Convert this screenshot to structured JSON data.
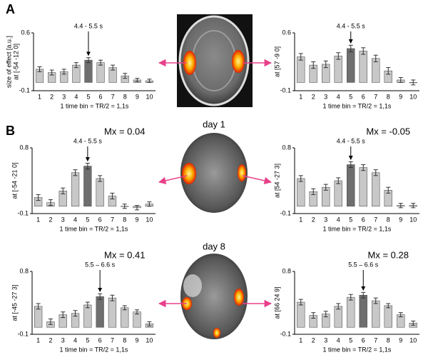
{
  "labels": {
    "panel_a": "A",
    "panel_b": "B",
    "day1": "day 1",
    "day8": "day 8"
  },
  "chart_data": [
    {
      "type": "bar",
      "ylabel": [
        "size of effect [a.u.]",
        "at [-54 -12 0]"
      ],
      "xlabel": "1 time bin = TR/2 = 1,1s",
      "annotation": "4.4 - 5.5 s",
      "categories": [
        1,
        2,
        3,
        4,
        5,
        6,
        7,
        8,
        9,
        10
      ],
      "values": [
        0.16,
        0.12,
        0.13,
        0.21,
        0.27,
        0.24,
        0.18,
        0.08,
        0.03,
        0.02
      ],
      "errors": [
        0.03,
        0.03,
        0.03,
        0.03,
        0.03,
        0.03,
        0.03,
        0.03,
        0.02,
        0.02
      ],
      "colors": [
        "#c8c8c8",
        "#c8c8c8",
        "#c8c8c8",
        "#c8c8c8",
        "#6e6e6e",
        "#c8c8c8",
        "#c8c8c8",
        "#c8c8c8",
        "#c8c8c8",
        "#c8c8c8"
      ],
      "ylim": [
        -0.1,
        0.6
      ],
      "yticks": [
        -0.1,
        0.6
      ]
    },
    {
      "type": "bar",
      "ylabel": [
        "at [57 -9 0]"
      ],
      "xlabel": "1 time bin = TR/2 = 1,1s",
      "annotation": "4.4 - 5.5 s",
      "categories": [
        1,
        2,
        3,
        4,
        5,
        6,
        7,
        8,
        9,
        10
      ],
      "values": [
        0.31,
        0.21,
        0.22,
        0.32,
        0.41,
        0.38,
        0.29,
        0.14,
        0.03,
        0.0
      ],
      "errors": [
        0.04,
        0.04,
        0.04,
        0.04,
        0.04,
        0.04,
        0.04,
        0.04,
        0.03,
        0.03
      ],
      "colors": [
        "#c8c8c8",
        "#c8c8c8",
        "#c8c8c8",
        "#c8c8c8",
        "#6e6e6e",
        "#c8c8c8",
        "#c8c8c8",
        "#c8c8c8",
        "#c8c8c8",
        "#c8c8c8"
      ],
      "ylim": [
        -0.1,
        0.6
      ],
      "yticks": [
        -0.1,
        0.6
      ]
    },
    {
      "type": "bar",
      "title": "Mx = 0.04",
      "ylabel": [
        "at [-54 -21 0]"
      ],
      "xlabel": "1 time bin = TR/2 = 1,1s",
      "annotation": "4.4 - 5.5 s",
      "categories": [
        1,
        2,
        3,
        4,
        5,
        6,
        7,
        8,
        9,
        10
      ],
      "values": [
        0.12,
        0.05,
        0.21,
        0.46,
        0.55,
        0.38,
        0.14,
        0.0,
        -0.02,
        0.03
      ],
      "errors": [
        0.04,
        0.04,
        0.04,
        0.04,
        0.04,
        0.04,
        0.04,
        0.03,
        0.03,
        0.03
      ],
      "colors": [
        "#c8c8c8",
        "#c8c8c8",
        "#c8c8c8",
        "#c8c8c8",
        "#6e6e6e",
        "#c8c8c8",
        "#c8c8c8",
        "#c8c8c8",
        "#c8c8c8",
        "#c8c8c8"
      ],
      "ylim": [
        -0.1,
        0.8
      ],
      "yticks": [
        -0.1,
        0.8
      ]
    },
    {
      "type": "bar",
      "title": "Mx = -0.05",
      "ylabel": [
        "at [54 -27 3]"
      ],
      "xlabel": "1 time bin = TR/2 = 1,1s",
      "annotation": "4.4 - 5.5 s",
      "categories": [
        1,
        2,
        3,
        4,
        5,
        6,
        7,
        8,
        9,
        10
      ],
      "values": [
        0.38,
        0.2,
        0.26,
        0.35,
        0.57,
        0.53,
        0.46,
        0.22,
        0.01,
        0.01
      ],
      "errors": [
        0.04,
        0.04,
        0.04,
        0.04,
        0.04,
        0.04,
        0.04,
        0.04,
        0.03,
        0.03
      ],
      "colors": [
        "#c8c8c8",
        "#c8c8c8",
        "#c8c8c8",
        "#c8c8c8",
        "#6e6e6e",
        "#c8c8c8",
        "#c8c8c8",
        "#c8c8c8",
        "#c8c8c8",
        "#c8c8c8"
      ],
      "ylim": [
        -0.1,
        0.8
      ],
      "yticks": [
        -0.1,
        0.8
      ]
    },
    {
      "type": "bar",
      "title": "Mx = 0.41",
      "ylabel": [
        "at [-45 -27 3]"
      ],
      "xlabel": "1 time bin = TR/2 = 1,1s",
      "annotation": "5.5 – 6.6 s",
      "categories": [
        1,
        2,
        3,
        4,
        5,
        6,
        7,
        8,
        9,
        10
      ],
      "values": [
        0.3,
        0.08,
        0.18,
        0.2,
        0.32,
        0.44,
        0.42,
        0.28,
        0.22,
        0.05
      ],
      "errors": [
        0.04,
        0.04,
        0.04,
        0.04,
        0.04,
        0.04,
        0.04,
        0.03,
        0.03,
        0.03
      ],
      "colors": [
        "#c8c8c8",
        "#c8c8c8",
        "#c8c8c8",
        "#c8c8c8",
        "#c8c8c8",
        "#6e6e6e",
        "#c8c8c8",
        "#c8c8c8",
        "#c8c8c8",
        "#c8c8c8"
      ],
      "ylim": [
        -0.1,
        0.8
      ],
      "yticks": [
        -0.1,
        0.8
      ]
    },
    {
      "type": "bar",
      "title": "Mx = 0.28",
      "ylabel": [
        "at [66 24 9]"
      ],
      "xlabel": "1 time bin = TR/2 = 1,1s",
      "annotation": "5.5 – 6.6 s",
      "categories": [
        1,
        2,
        3,
        4,
        5,
        6,
        7,
        8,
        9,
        10
      ],
      "values": [
        0.36,
        0.17,
        0.19,
        0.3,
        0.43,
        0.46,
        0.38,
        0.31,
        0.18,
        0.06
      ],
      "errors": [
        0.04,
        0.04,
        0.04,
        0.04,
        0.04,
        0.04,
        0.04,
        0.03,
        0.03,
        0.03
      ],
      "colors": [
        "#c8c8c8",
        "#c8c8c8",
        "#c8c8c8",
        "#c8c8c8",
        "#c8c8c8",
        "#6e6e6e",
        "#c8c8c8",
        "#c8c8c8",
        "#c8c8c8",
        "#c8c8c8"
      ],
      "ylim": [
        -0.1,
        0.8
      ],
      "yticks": [
        -0.1,
        0.8
      ]
    }
  ]
}
